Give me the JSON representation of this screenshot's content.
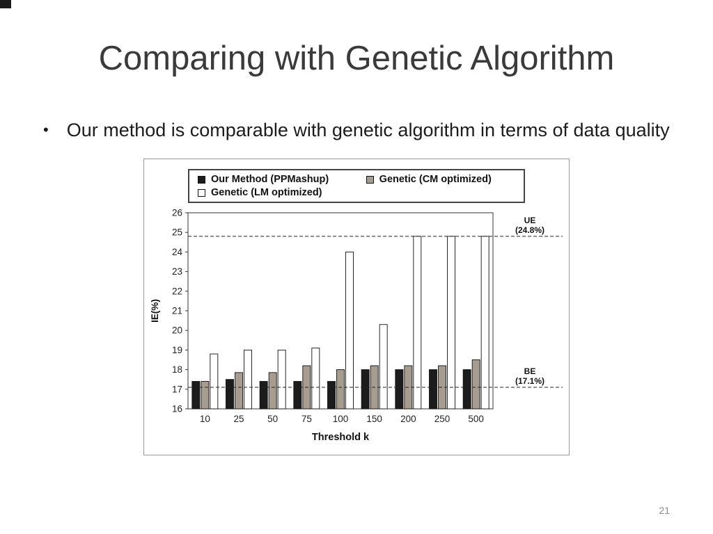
{
  "slide": {
    "title": "Comparing with Genetic Algorithm",
    "bullet_glyph": "•",
    "bullet": "Our method is comparable with genetic algorithm in terms of data quality",
    "page_number": "21"
  },
  "chart_data": {
    "type": "bar",
    "categories": [
      "10",
      "25",
      "50",
      "75",
      "100",
      "150",
      "200",
      "250",
      "500"
    ],
    "series": [
      {
        "name": "Our Method (PPMashup)",
        "color": "#1c1c1c",
        "values": [
          17.4,
          17.5,
          17.4,
          17.4,
          17.4,
          18.0,
          18.0,
          18.0,
          18.0
        ]
      },
      {
        "name": "Genetic (CM optimized)",
        "color": "#a69c90",
        "values": [
          17.4,
          17.85,
          17.85,
          18.2,
          18.0,
          18.2,
          18.2,
          18.2,
          18.5
        ]
      },
      {
        "name": "Genetic (LM optimized)",
        "color": "#ffffff",
        "values": [
          18.8,
          19.0,
          19.0,
          19.1,
          24.0,
          20.3,
          24.8,
          24.8,
          24.8
        ]
      }
    ],
    "xlabel": "Threshold k",
    "ylabel": "IE(%)",
    "ylim": [
      16,
      26
    ],
    "yticks": [
      16,
      17,
      18,
      19,
      20,
      21,
      22,
      23,
      24,
      25,
      26
    ],
    "grid": false,
    "legend_position": "top",
    "reference_lines": [
      {
        "label": "UE",
        "value_label": "(24.8%)",
        "value": 24.8
      },
      {
        "label": "BE",
        "value_label": "(17.1%)",
        "value": 17.1
      }
    ]
  }
}
